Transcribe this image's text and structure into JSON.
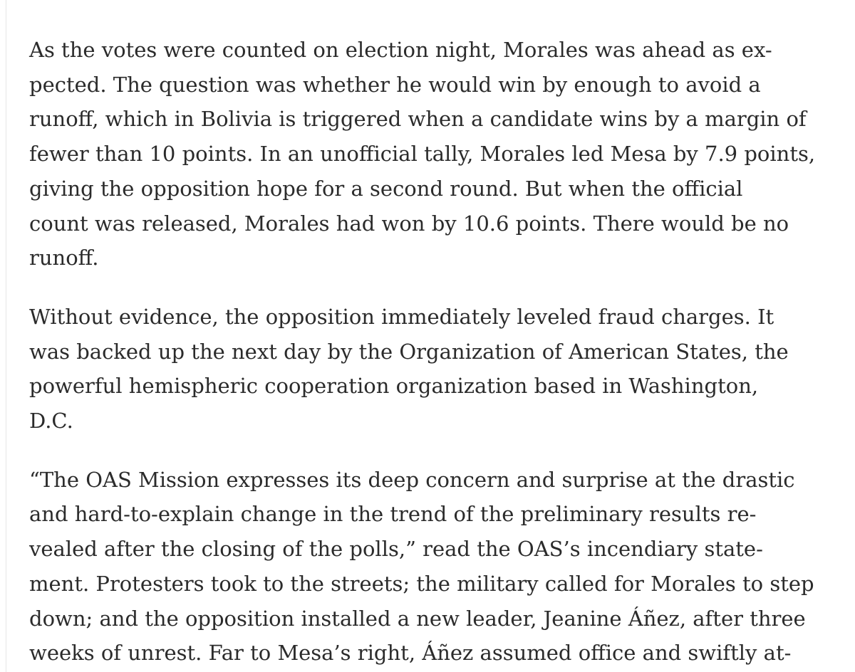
{
  "article": {
    "paragraphs": [
      {
        "lines": [
          "As the votes were counted on election night, Morales was ahead as ex-",
          "pected. The question was whether he would win by enough to avoid a",
          "runoff, which in Bolivia is triggered when a candidate wins by a margin of",
          "fewer than 10 points. In an unofficial tally, Morales led Mesa by 7.9 points,",
          "giving the opposition hope for a second round. But when the official",
          "count was released, Morales had won by 10.6 points. There would be no",
          "runoff."
        ]
      },
      {
        "lines": [
          "Without evidence, the opposition immediately leveled fraud charges. It",
          "was backed up the next day by the Organization of American States, the",
          "powerful hemispheric cooperation organization based in Washington,",
          "D.C."
        ]
      },
      {
        "lines": [
          "“The OAS Mission expresses its deep concern and surprise at the drastic",
          "and hard-to-explain change in the trend of the preliminary results re-",
          "vealed after the closing of the polls,” read the OAS’s incendiary state-",
          "ment. Protesters took to the streets; the military called for Morales to step",
          "down; and the opposition installed a new leader, Jeanine Áñez, after three",
          "weeks of unrest. Far to Mesa’s right, Áñez assumed office and swiftly at-"
        ]
      }
    ]
  }
}
